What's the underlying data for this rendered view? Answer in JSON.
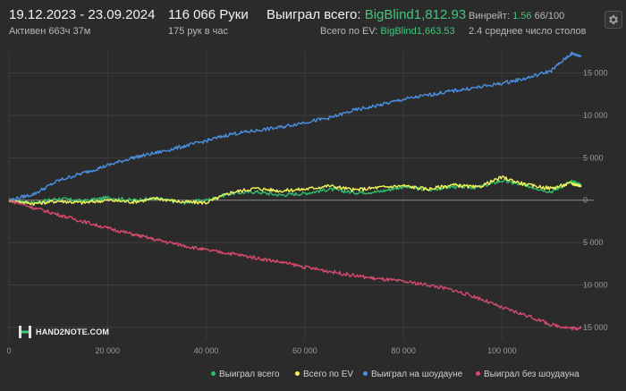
{
  "header": {
    "date_range": "19.12.2023 - 23.09.2024",
    "active": "Активен 663ч 37м",
    "hands": "116 066 Руки",
    "hands_per_hour": "175 рук в час",
    "won_total_label": "Выиграл всего:",
    "won_total_value": "BigBlind1,812.93",
    "ev_label": "Всего по EV:",
    "ev_value": "BigBlind1,663.53",
    "winrate_label": "Винрейт:",
    "winrate_value": "1.56",
    "winrate_suffix": "66/100",
    "tables": "2.4 среднее число столов"
  },
  "settings_icon": "gear-icon",
  "logo": {
    "name": "HAND2NOTE.COM",
    "icon": "h-logo-icon"
  },
  "colors": {
    "background": "#2b2b2b",
    "green": "#2ebd6b",
    "yellow": "#f3f35a",
    "blue": "#4a90e2",
    "red": "#d84a6e",
    "accent_text": "#3fc77a"
  },
  "chart_data": {
    "type": "line",
    "x_ticks": [
      "0",
      "20 000",
      "40 000",
      "60 000",
      "80 000",
      "100 000"
    ],
    "x_tick_values": [
      0,
      20000,
      40000,
      60000,
      80000,
      100000
    ],
    "y_ticks": [
      "15 000",
      "10 000",
      "5 000",
      "0",
      "5 000",
      "10 000",
      "15 000"
    ],
    "y_tick_values": [
      15000,
      10000,
      5000,
      0,
      -5000,
      -10000,
      -15000
    ],
    "xlim": [
      0,
      116066
    ],
    "ylim": [
      -16500,
      17500
    ],
    "grid": true,
    "legend_position": "bottom-right",
    "series": [
      {
        "name": "Выиграл всего",
        "color": "#2ebd6b",
        "x": [
          0,
          5000,
          10000,
          15000,
          20000,
          25000,
          30000,
          35000,
          40000,
          45000,
          50000,
          55000,
          60000,
          65000,
          70000,
          75000,
          80000,
          85000,
          90000,
          95000,
          100000,
          105000,
          110000,
          114000,
          116066
        ],
        "values": [
          0,
          -300,
          200,
          -100,
          300,
          0,
          200,
          -300,
          0,
          800,
          1000,
          600,
          800,
          1300,
          900,
          1000,
          1600,
          1200,
          1600,
          1500,
          2300,
          1700,
          1000,
          2200,
          1813
        ]
      },
      {
        "name": "Всего по EV",
        "color": "#f3f35a",
        "x": [
          0,
          5000,
          10000,
          15000,
          20000,
          25000,
          30000,
          35000,
          40000,
          45000,
          50000,
          55000,
          60000,
          65000,
          70000,
          75000,
          80000,
          85000,
          90000,
          95000,
          100000,
          105000,
          110000,
          114000,
          116066
        ],
        "values": [
          0,
          -400,
          -100,
          -300,
          0,
          -200,
          200,
          -200,
          -300,
          900,
          1400,
          1100,
          1300,
          1700,
          1200,
          1500,
          1700,
          1300,
          1800,
          1500,
          2700,
          1800,
          1400,
          2000,
          1664
        ]
      },
      {
        "name": "Выиграл на шоудауне",
        "color": "#4a90e2",
        "x": [
          0,
          5000,
          10000,
          15000,
          20000,
          25000,
          30000,
          35000,
          40000,
          45000,
          50000,
          55000,
          60000,
          65000,
          70000,
          75000,
          80000,
          85000,
          90000,
          95000,
          100000,
          105000,
          110000,
          114000,
          116066
        ],
        "values": [
          0,
          700,
          2300,
          3200,
          4100,
          5000,
          5600,
          6300,
          7000,
          7800,
          8200,
          8600,
          9200,
          9700,
          10600,
          11200,
          11900,
          12400,
          12900,
          13300,
          13800,
          14400,
          15300,
          17300,
          17000
        ]
      },
      {
        "name": "Выиграл без шоудауна",
        "color": "#d84a6e",
        "x": [
          0,
          5000,
          10000,
          15000,
          20000,
          25000,
          30000,
          35000,
          40000,
          45000,
          50000,
          55000,
          60000,
          65000,
          70000,
          75000,
          80000,
          85000,
          90000,
          95000,
          100000,
          105000,
          110000,
          114000,
          116066
        ],
        "values": [
          0,
          -900,
          -1700,
          -2500,
          -3300,
          -4000,
          -4700,
          -5300,
          -5900,
          -6300,
          -6800,
          -7300,
          -7900,
          -8400,
          -8900,
          -9300,
          -9600,
          -10000,
          -10600,
          -11500,
          -12700,
          -13600,
          -14700,
          -15100,
          -15100
        ]
      }
    ]
  }
}
